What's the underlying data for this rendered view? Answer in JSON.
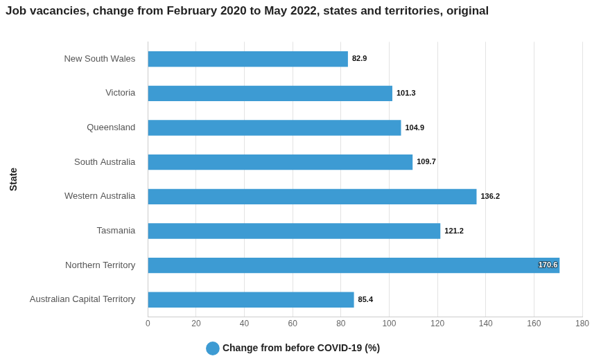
{
  "chart_data": {
    "type": "bar",
    "title": "Job vacancies, change from February 2020 to May 2022, states and territories, original",
    "y_label": "State",
    "orientation": "horizontal",
    "categories": [
      "New South Wales",
      "Victoria",
      "Queensland",
      "South Australia",
      "Western Australia",
      "Tasmania",
      "Northern Territory",
      "Australian Capital Territory"
    ],
    "series": [
      {
        "name": "Change from before COVID-19 (%)",
        "color": "#3d9bd3",
        "values": [
          82.9,
          101.3,
          104.9,
          109.7,
          136.2,
          121.2,
          170.6,
          85.4
        ]
      }
    ],
    "xlim": [
      0,
      180
    ],
    "xticks": [
      0,
      20,
      40,
      60,
      80,
      100,
      120,
      140,
      160,
      180
    ],
    "grid": true,
    "legend": "bottom",
    "data_labels": true
  }
}
